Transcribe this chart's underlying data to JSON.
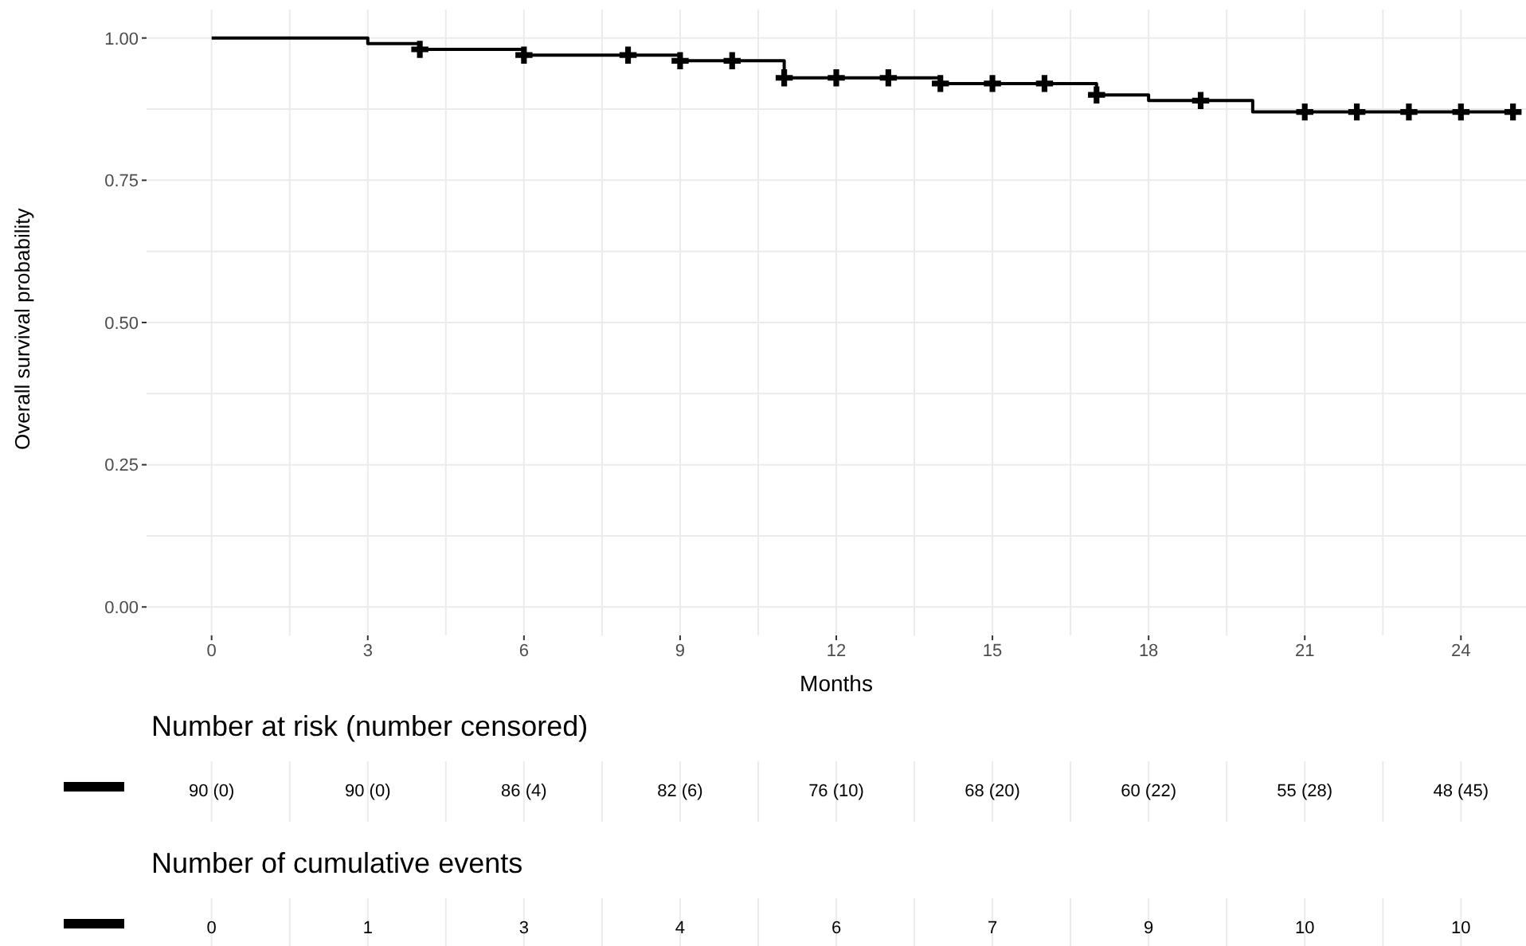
{
  "chart_data": [
    {
      "type": "step",
      "ylabel": "Overall survival probability",
      "xlabel": "Months",
      "xlim": [
        -1.25,
        25.25
      ],
      "xticks": [
        0,
        3,
        6,
        9,
        12,
        15,
        18,
        21,
        24
      ],
      "ylim": [
        -0.05,
        1.05
      ],
      "yticks": [
        {
          "value": 0,
          "label": "0.00"
        },
        {
          "value": 0.25,
          "label": "0.25"
        },
        {
          "value": 0.5,
          "label": "0.50"
        },
        {
          "value": 0.75,
          "label": "0.75"
        },
        {
          "value": 1,
          "label": "1.00"
        }
      ],
      "grid": true,
      "series": [
        {
          "type": "step",
          "color": "#000000",
          "marker": "none",
          "x": [
            0,
            3,
            4,
            6,
            9,
            11,
            14,
            17,
            18,
            20,
            25
          ],
          "values": [
            1,
            0.99,
            0.98,
            0.97,
            0.96,
            0.93,
            0.92,
            0.9,
            0.89,
            0.87,
            0.87
          ]
        },
        {
          "type": "scatter",
          "color": "#000000",
          "marker": "cross",
          "x": [
            4,
            6,
            8,
            9,
            10,
            11,
            12,
            13,
            14,
            15,
            16,
            17,
            19,
            21,
            22,
            23,
            24,
            25
          ],
          "values": [
            0.98,
            0.97,
            0.97,
            0.96,
            0.96,
            0.93,
            0.93,
            0.93,
            0.92,
            0.92,
            0.92,
            0.9,
            0.89,
            0.87,
            0.87,
            0.87,
            0.87,
            0.87
          ]
        }
      ]
    },
    {
      "type": "other",
      "title": "Number at risk (number censored)",
      "value_labels": [
        "90 (0)",
        "90 (0)",
        "86 (4)",
        "82 (6)",
        "76 (10)",
        "68 (20)",
        "60 (22)",
        "55 (28)",
        "48 (45)"
      ],
      "color": "#000000"
    },
    {
      "type": "other",
      "title": "Number of cumulative events",
      "values": [
        0,
        1,
        3,
        4,
        6,
        7,
        9,
        10,
        10
      ],
      "data_labels": true,
      "color": "#000000"
    }
  ]
}
